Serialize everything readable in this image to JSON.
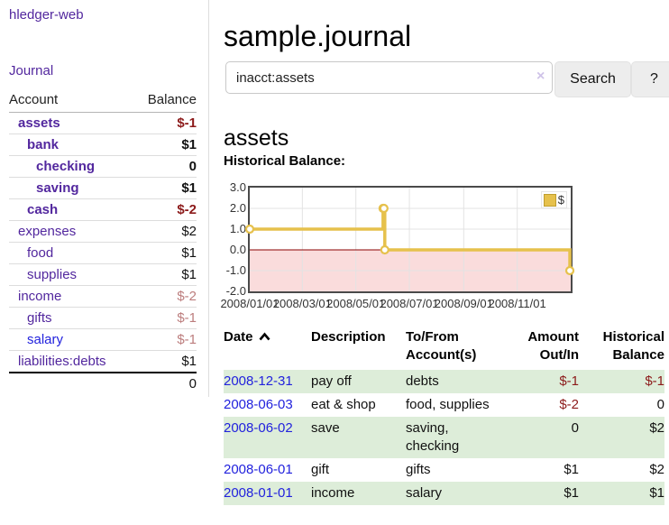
{
  "app": {
    "title": "hledger-web"
  },
  "sidebar": {
    "journal_link": "Journal",
    "accounts": {
      "header_account": "Account",
      "header_balance": "Balance",
      "rows": [
        {
          "name": "assets",
          "balance": "$-1"
        },
        {
          "name": "bank",
          "balance": "$1"
        },
        {
          "name": "checking",
          "balance": "0"
        },
        {
          "name": "saving",
          "balance": "$1"
        },
        {
          "name": "cash",
          "balance": "$-2"
        },
        {
          "name": "expenses",
          "balance": "$2"
        },
        {
          "name": "food",
          "balance": "$1"
        },
        {
          "name": "supplies",
          "balance": "$1"
        },
        {
          "name": "income",
          "balance": "$-2"
        },
        {
          "name": "gifts",
          "balance": "$-1"
        },
        {
          "name": "salary",
          "balance": "$-1"
        },
        {
          "name": "liabilities:debts",
          "balance": "$1"
        }
      ],
      "total": "0"
    }
  },
  "main": {
    "title": "sample.journal",
    "search": {
      "value": "inacct:assets",
      "clear_icon": "×",
      "button": "Search",
      "help_button": "?"
    },
    "account_heading": "assets",
    "chart_title": "Historical Balance:"
  },
  "register": {
    "headers": {
      "date": "Date",
      "description": "Description",
      "to_from": "To/From Account(s)",
      "amount": "Amount Out/In",
      "balance": "Historical Balance"
    },
    "rows": [
      {
        "date": "2008-12-31",
        "description": "pay off",
        "to_from": "debts",
        "amount": "$-1",
        "balance": "$-1"
      },
      {
        "date": "2008-06-03",
        "description": "eat & shop",
        "to_from": "food, supplies",
        "amount": "$-2",
        "balance": "0"
      },
      {
        "date": "2008-06-02",
        "description": "save",
        "to_from": "saving, checking",
        "amount": "0",
        "balance": "$2"
      },
      {
        "date": "2008-06-01",
        "description": "gift",
        "to_from": "gifts",
        "amount": "$1",
        "balance": "$2"
      },
      {
        "date": "2008-01-01",
        "description": "income",
        "to_from": "salary",
        "amount": "$1",
        "balance": "$1"
      }
    ]
  },
  "chart_data": {
    "type": "line",
    "step": true,
    "title": "Historical Balance:",
    "legend": "$",
    "legend_position": "top-right",
    "x_range": [
      "2008-01-01",
      "2009-01-01"
    ],
    "ylim": [
      -2.0,
      3.0
    ],
    "grid": true,
    "yticks": [
      {
        "value": 3.0,
        "label": "3.0"
      },
      {
        "value": 2.0,
        "label": "2.0"
      },
      {
        "value": 1.0,
        "label": "1.0"
      },
      {
        "value": 0.0,
        "label": "0.0"
      },
      {
        "value": -1.0,
        "label": "-1.0"
      },
      {
        "value": -2.0,
        "label": "-2.0"
      }
    ],
    "xticks": [
      {
        "date": "2008-01-01",
        "label": "2008/01/01"
      },
      {
        "date": "2008-03-01",
        "label": "2008/03/01"
      },
      {
        "date": "2008-05-01",
        "label": "2008/05/01"
      },
      {
        "date": "2008-07-01",
        "label": "2008/07/01"
      },
      {
        "date": "2008-09-01",
        "label": "2008/09/01"
      },
      {
        "date": "2008-11-01",
        "label": "2008/11/01"
      }
    ],
    "series": [
      {
        "name": "$",
        "color": "#e6c14c",
        "points": [
          [
            "2008-01-01",
            1
          ],
          [
            "2008-06-01",
            2
          ],
          [
            "2008-06-02",
            2
          ],
          [
            "2008-06-03",
            0
          ],
          [
            "2008-12-31",
            -1
          ]
        ]
      }
    ],
    "colors": {
      "negative_region": "#fadcdc",
      "zero_line": "#8b0000",
      "grid": "#e3e3e3",
      "border": "#4a4a4a",
      "marker_fill": "#ffffff"
    }
  }
}
